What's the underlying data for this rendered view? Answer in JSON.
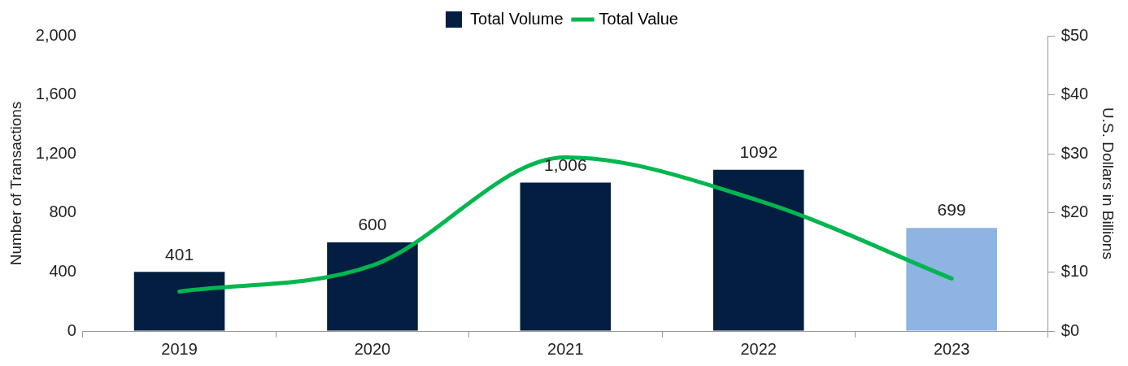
{
  "chart_data": {
    "type": "bar",
    "categories": [
      "2019",
      "2020",
      "2021",
      "2022",
      "2023"
    ],
    "series": [
      {
        "name": "Total Volume",
        "colors": [
          "#041e42",
          "#041e42",
          "#041e42",
          "#041e42",
          "#8db4e2"
        ],
        "values": [
          401,
          600,
          1006,
          1092,
          699
        ],
        "value_labels": [
          "401",
          "600",
          "1,006",
          "1092",
          "699"
        ]
      },
      {
        "name": "Total Value",
        "type": "line",
        "axis": "y2",
        "color": "#00b64f",
        "values": [
          6.7,
          11.1,
          29.4,
          22.1,
          8.9
        ]
      }
    ],
    "ylabel": "Number of Transactions",
    "y2label": "U.S. Dollars in Billions",
    "ylim": [
      0,
      2000
    ],
    "yticks": [
      0,
      400,
      800,
      {
        "value": 1200,
        "label": "1,200"
      },
      {
        "value": 1600,
        "label": "1,600"
      },
      {
        "value": 2000,
        "label": "2,000"
      }
    ],
    "y2lim": [
      0,
      50
    ],
    "y2ticks": [
      {
        "value": 0,
        "label": "$0"
      },
      {
        "value": 10,
        "label": "$10"
      },
      {
        "value": 20,
        "label": "$20"
      },
      {
        "value": 30,
        "label": "$30"
      },
      {
        "value": 40,
        "label": "$40"
      },
      {
        "value": 50,
        "label": "$50"
      }
    ],
    "legend": "top",
    "grid": false,
    "marker": "none"
  }
}
